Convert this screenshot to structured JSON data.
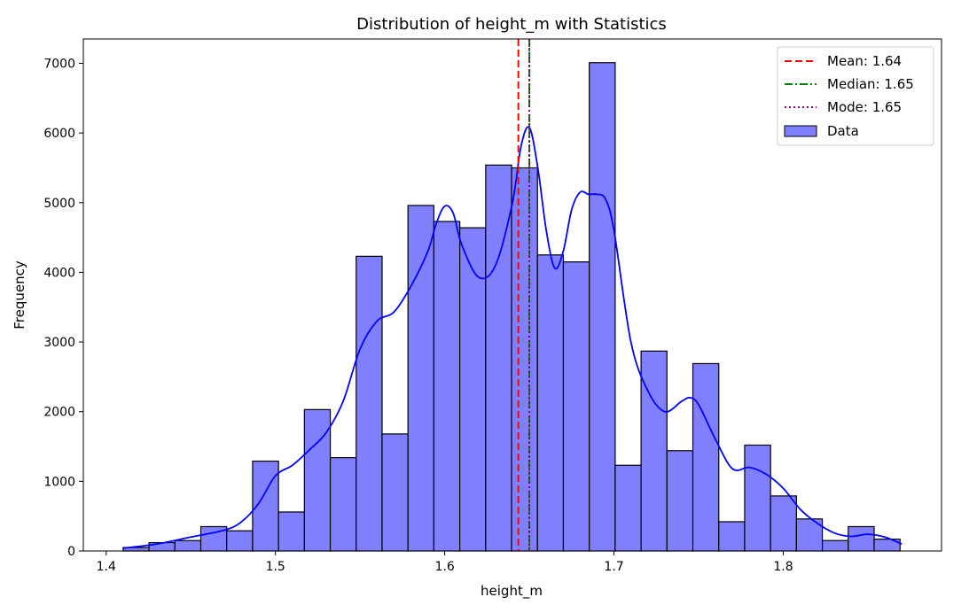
{
  "chart_data": {
    "type": "bar",
    "title": "Distribution of height_m with Statistics",
    "xlabel": "height_m",
    "ylabel": "Frequency",
    "xlim": [
      1.3865,
      1.8935
    ],
    "ylim": [
      0,
      7350
    ],
    "x_ticks": [
      1.4,
      1.5,
      1.6,
      1.7,
      1.8
    ],
    "x_tick_labels": [
      "1.4",
      "1.5",
      "1.6",
      "1.7",
      "1.8"
    ],
    "y_ticks": [
      0,
      1000,
      2000,
      3000,
      4000,
      5000,
      6000,
      7000
    ],
    "y_tick_labels": [
      "0",
      "1000",
      "2000",
      "3000",
      "4000",
      "5000",
      "6000",
      "7000"
    ],
    "bin_start": 1.41,
    "bin_width": 0.0153,
    "bin_counts": [
      50,
      120,
      150,
      350,
      290,
      1290,
      560,
      2030,
      1340,
      4230,
      1680,
      4960,
      4730,
      4640,
      5540,
      5500,
      4250,
      4150,
      7010,
      1230,
      2870,
      1440,
      2690,
      420,
      1520,
      790,
      460,
      150,
      350,
      170
    ],
    "kde_series": {
      "name": "",
      "x": [
        1.41,
        1.43,
        1.45,
        1.47,
        1.48,
        1.49,
        1.5,
        1.51,
        1.52,
        1.53,
        1.54,
        1.55,
        1.56,
        1.57,
        1.58,
        1.59,
        1.595,
        1.6,
        1.605,
        1.61,
        1.62,
        1.63,
        1.64,
        1.645,
        1.65,
        1.655,
        1.66,
        1.665,
        1.67,
        1.675,
        1.68,
        1.685,
        1.69,
        1.695,
        1.7,
        1.71,
        1.72,
        1.73,
        1.74,
        1.745,
        1.75,
        1.76,
        1.77,
        1.78,
        1.79,
        1.8,
        1.81,
        1.82,
        1.83,
        1.84,
        1.85,
        1.86,
        1.87
      ],
      "y": [
        40,
        100,
        200,
        300,
        420,
        680,
        1080,
        1230,
        1450,
        1700,
        2150,
        2900,
        3300,
        3430,
        3800,
        4300,
        4700,
        4950,
        4850,
        4400,
        3930,
        4100,
        5000,
        5800,
        6080,
        5500,
        4600,
        4060,
        4300,
        4900,
        5150,
        5120,
        5120,
        5050,
        4600,
        3000,
        2300,
        2000,
        2150,
        2200,
        2100,
        1600,
        1180,
        1200,
        1100,
        900,
        600,
        400,
        260,
        210,
        240,
        200,
        100
      ]
    },
    "stat_lines": [
      {
        "label": "Mean: 1.64",
        "value": 1.6435,
        "color": "#ff0000",
        "style": "dashed"
      },
      {
        "label": "Median: 1.65",
        "value": 1.65,
        "color": "#008000",
        "style": "dashdot"
      },
      {
        "label": "Mode: 1.65",
        "value": 1.65,
        "color": "#800080",
        "style": "dotted"
      }
    ],
    "data_legend_label": "Data",
    "bar_color": "#8080ff",
    "bar_edge_color": "#000000",
    "kde_color": "#0000ff",
    "legend_position": "top-right",
    "grid": false
  }
}
